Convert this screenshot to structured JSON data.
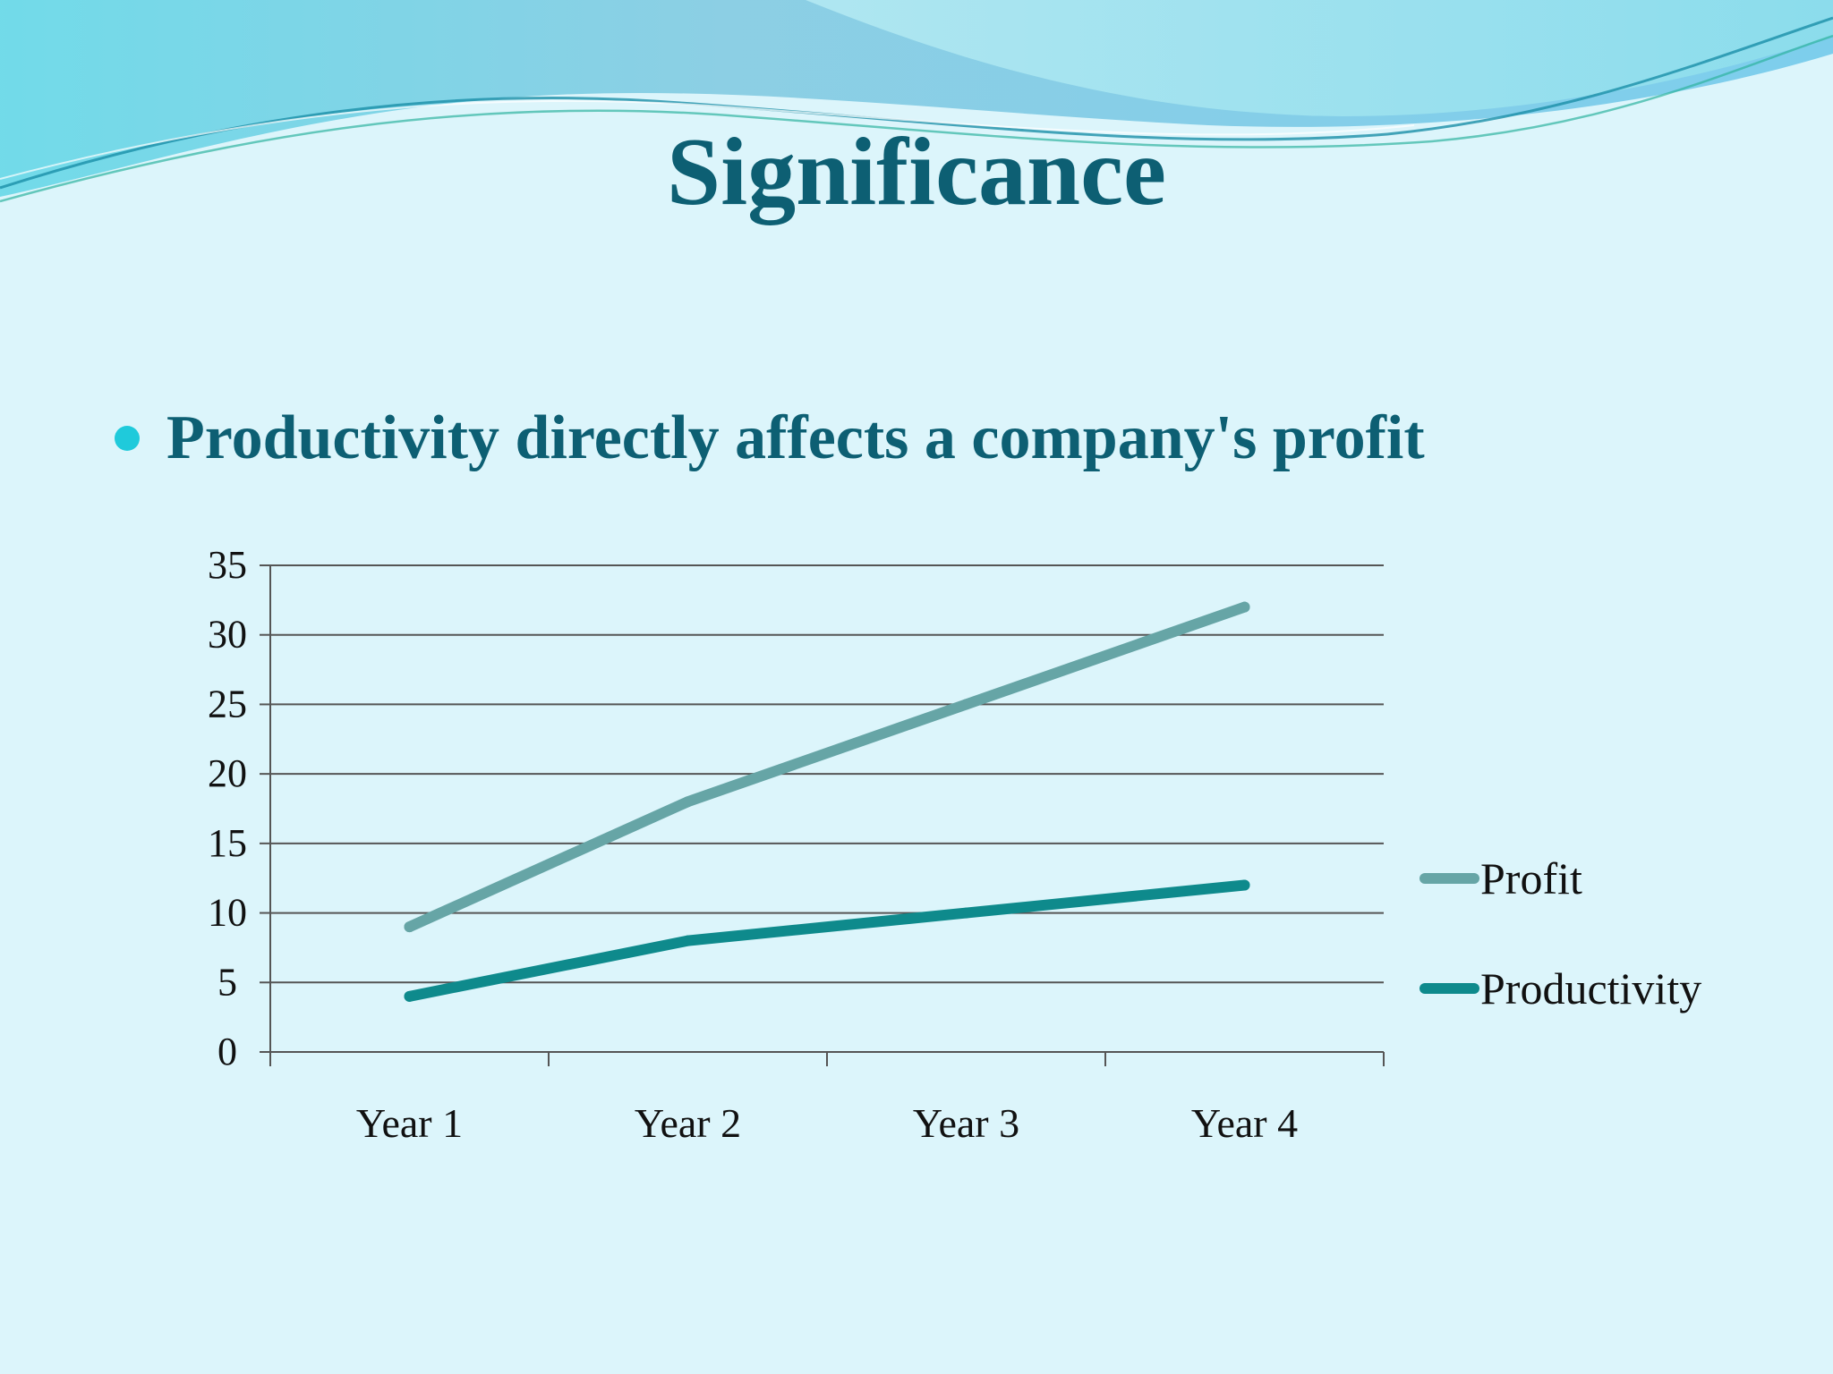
{
  "slide": {
    "title": "Significance",
    "bullet": "Productivity directly affects a company's profit",
    "colors": {
      "background": "#dcf5fb",
      "title": "#0d5f73",
      "bullet_dot": "#1fcadb"
    }
  },
  "chart_data": {
    "type": "line",
    "title": "",
    "xlabel": "",
    "ylabel": "",
    "categories": [
      "Year 1",
      "Year 2",
      "Year 3",
      "Year 4"
    ],
    "series": [
      {
        "name": "Profit",
        "values": [
          9,
          18,
          25,
          32
        ],
        "color": "#66a5a6"
      },
      {
        "name": "Productivity",
        "values": [
          4,
          8,
          10,
          12
        ],
        "color": "#0e8a8c"
      }
    ],
    "ylim": [
      0,
      35
    ],
    "yticks": [
      0,
      5,
      10,
      15,
      20,
      25,
      30,
      35
    ],
    "ytick_labels": [
      "0",
      "5",
      "10",
      "15",
      "20",
      "25",
      "30",
      "35"
    ],
    "grid": true,
    "legend_position": "right"
  }
}
